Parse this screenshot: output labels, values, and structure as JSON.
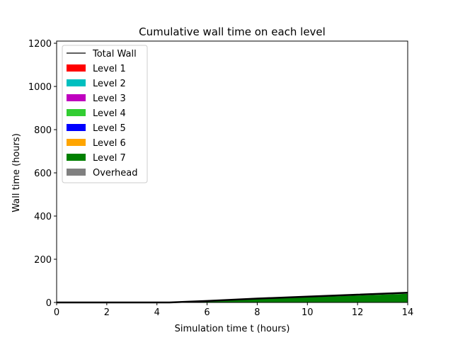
{
  "chart_data": {
    "type": "area",
    "title": "Cumulative wall time on each level",
    "xlabel": "Simulation time t (hours)",
    "ylabel": "Wall time (hours)",
    "xlim": [
      0,
      14
    ],
    "ylim": [
      0,
      1210
    ],
    "xticks": [
      "0",
      "2",
      "4",
      "6",
      "8",
      "10",
      "12",
      "14"
    ],
    "yticks": [
      "0",
      "200",
      "400",
      "600",
      "800",
      "1000",
      "1200"
    ],
    "grid": false,
    "legend_position": "top-left",
    "x": [
      0,
      4.5,
      6,
      8,
      10,
      12,
      14
    ],
    "series": [
      {
        "name": "Level 1",
        "color": "#ff0000",
        "values": [
          0,
          0,
          0,
          0,
          0,
          0,
          0
        ]
      },
      {
        "name": "Level 2",
        "color": "#00bfbf",
        "values": [
          0,
          0,
          0,
          0,
          0,
          0,
          0
        ]
      },
      {
        "name": "Level 3",
        "color": "#bf00bf",
        "values": [
          0,
          0,
          0,
          0,
          0,
          0,
          0
        ]
      },
      {
        "name": "Level 4",
        "color": "#32cd32",
        "values": [
          0,
          0,
          0,
          0,
          0,
          0,
          0
        ]
      },
      {
        "name": "Level 5",
        "color": "#0000ff",
        "values": [
          0,
          0,
          0,
          0,
          0,
          0,
          0
        ]
      },
      {
        "name": "Level 6",
        "color": "#ffa500",
        "values": [
          0,
          0,
          0,
          0,
          0,
          0,
          0
        ]
      },
      {
        "name": "Level 7",
        "color": "#008000",
        "values": [
          0,
          0,
          6,
          16,
          24,
          32,
          40
        ]
      },
      {
        "name": "Overhead",
        "color": "#808080",
        "values": [
          0,
          0,
          1,
          2,
          3,
          4,
          5
        ]
      }
    ],
    "total_line": {
      "name": "Total Wall",
      "color": "#000000",
      "values": [
        0,
        0,
        7,
        18,
        27,
        36,
        45
      ]
    }
  }
}
